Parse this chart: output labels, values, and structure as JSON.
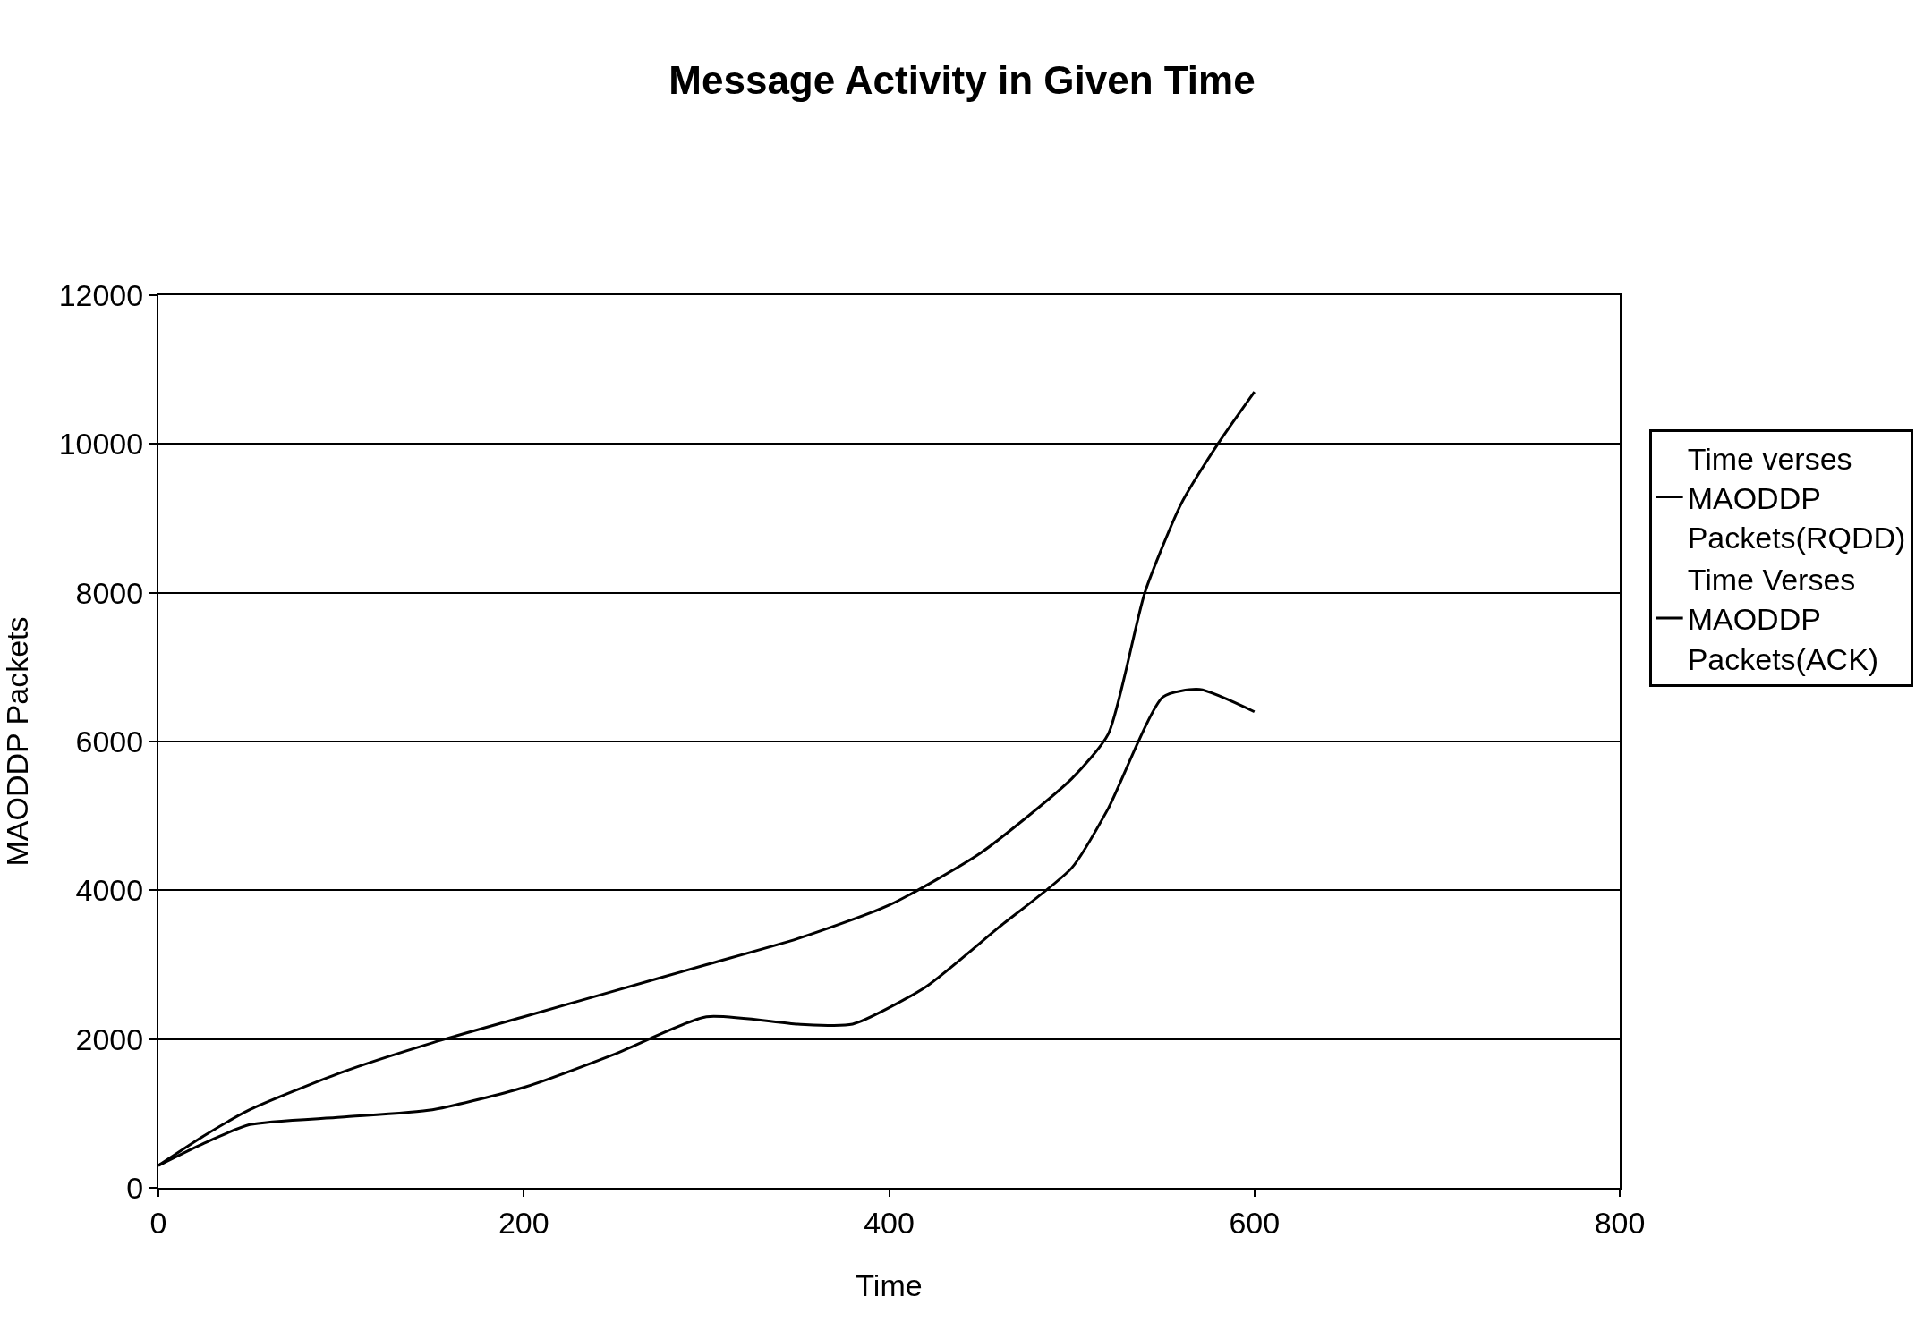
{
  "chart_data": {
    "type": "line",
    "title": "Message Activity in Given Time",
    "xlabel": "Time",
    "ylabel": "MAODDP Packets",
    "xlim": [
      0,
      800
    ],
    "xticks": [
      0,
      200,
      400,
      600,
      800
    ],
    "ylim": [
      0,
      12000
    ],
    "yticks": [
      0,
      2000,
      4000,
      6000,
      8000,
      10000,
      12000
    ],
    "grid": "y",
    "legend": "right",
    "marker": "none",
    "line_style": "solid",
    "series": [
      {
        "name": "Time verses MAODDP Packets(RQDD)",
        "color": "#000000",
        "x": [
          0,
          25,
          50,
          100,
          150,
          200,
          250,
          300,
          350,
          400,
          450,
          500,
          520,
          540,
          560,
          580,
          600
        ],
        "values": [
          300,
          700,
          1050,
          1550,
          1950,
          2300,
          2650,
          3000,
          3350,
          3800,
          4500,
          5500,
          6100,
          8000,
          9200,
          10000,
          10700
        ]
      },
      {
        "name": "Time Verses MAODDP Packets(ACK)",
        "color": "#000000",
        "x": [
          0,
          25,
          50,
          100,
          150,
          200,
          250,
          300,
          350,
          380,
          420,
          460,
          500,
          520,
          550,
          570,
          600
        ],
        "values": [
          300,
          600,
          850,
          950,
          1050,
          1350,
          1800,
          2300,
          2200,
          2200,
          2700,
          3500,
          4300,
          5100,
          6600,
          6700,
          6400
        ]
      }
    ]
  }
}
